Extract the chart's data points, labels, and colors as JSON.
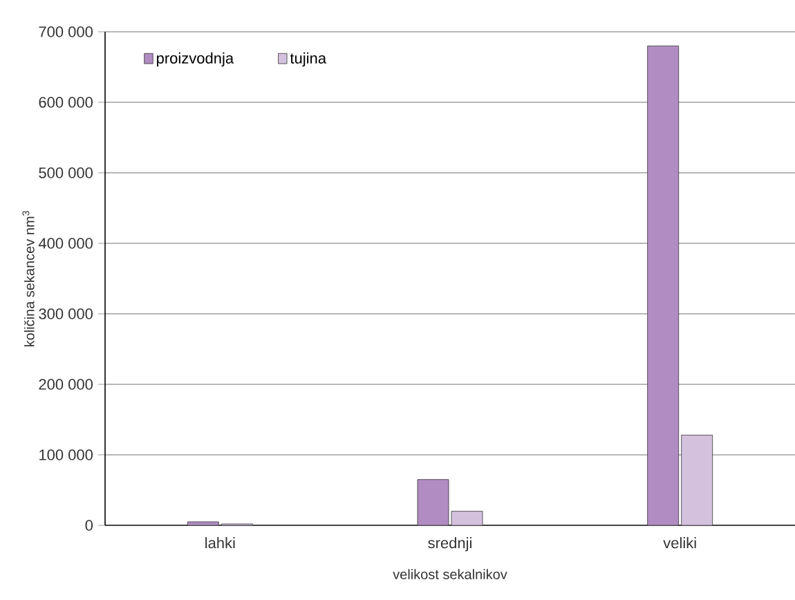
{
  "chart_data": {
    "type": "bar",
    "xlabel": "velikost sekalnikov",
    "ylabel": "količina sekancev nm$^{3}$",
    "categories": [
      "lahki",
      "srednji",
      "veliki"
    ],
    "series": [
      {
        "name": "proizvodnja",
        "color": "#b08cc2",
        "values": [
          5000,
          65000,
          680000
        ]
      },
      {
        "name": "tujina",
        "color": "#d4c1de",
        "values": [
          2000,
          20000,
          128000
        ]
      }
    ],
    "ylim": [
      0,
      700000
    ],
    "yticks": [
      {
        "value": 0,
        "label": "0"
      },
      {
        "value": 100000,
        "label": "100 000"
      },
      {
        "value": 200000,
        "label": "200 000"
      },
      {
        "value": 300000,
        "label": "300 000"
      },
      {
        "value": 400000,
        "label": "400 000"
      },
      {
        "value": 500000,
        "label": "500 000"
      },
      {
        "value": 600000,
        "label": "600 000"
      },
      {
        "value": 700000,
        "label": "700 000"
      }
    ],
    "grid": "y",
    "legend": "top left"
  }
}
